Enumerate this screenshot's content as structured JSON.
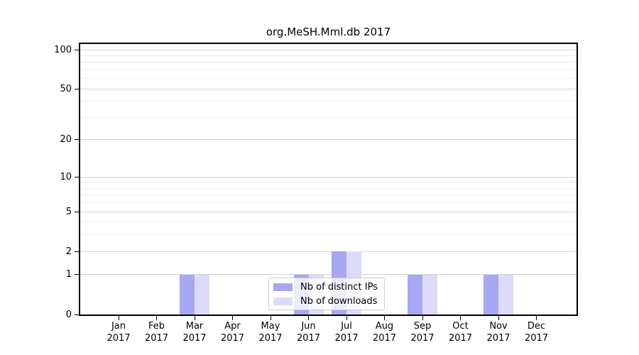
{
  "chart_data": {
    "type": "bar",
    "title": "org.MeSH.Mml.db 2017",
    "categories": [
      "Jan",
      "Feb",
      "Mar",
      "Apr",
      "May",
      "Jun",
      "Jul",
      "Aug",
      "Sep",
      "Oct",
      "Nov",
      "Dec"
    ],
    "category_year": "2017",
    "series": [
      {
        "name": "Nb of distinct IPs",
        "slug": "distinct-ips",
        "color": "#a7a7f3",
        "values": [
          0,
          0,
          1,
          0,
          0,
          1,
          2,
          0,
          1,
          0,
          1,
          0
        ]
      },
      {
        "name": "Nb of downloads",
        "slug": "downloads",
        "color": "#dbdbf9",
        "values": [
          0,
          0,
          1,
          0,
          0,
          1,
          2,
          0,
          1,
          0,
          1,
          0
        ]
      }
    ],
    "xlabel": "",
    "ylabel": "",
    "yscale": "log1p",
    "ylim": [
      0,
      112
    ],
    "yticks": [
      0,
      1,
      2,
      5,
      10,
      20,
      50,
      100
    ],
    "yticks_minor": [
      3,
      4,
      6,
      7,
      8,
      9,
      30,
      40,
      60,
      70,
      80,
      90
    ],
    "grid": "horizontal",
    "legend_position": "lower center",
    "colors": {
      "grid_major": "#d3d3d3",
      "grid_minor": "#ececec",
      "spine": "#000000",
      "text": "#000000",
      "legend_border": "#cccccc"
    }
  }
}
